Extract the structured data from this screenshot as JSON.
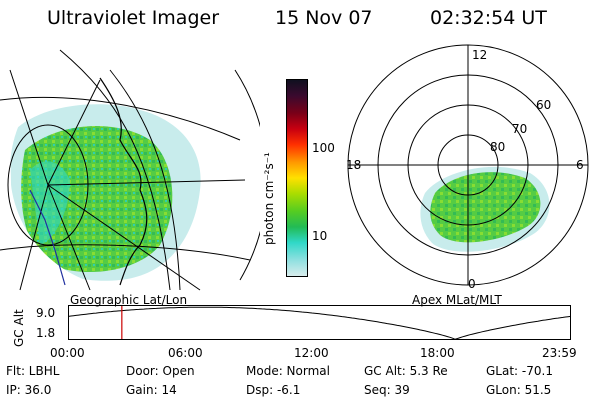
{
  "header": {
    "instrument": "Ultraviolet Imager",
    "date": "15 Nov 07",
    "time": "02:32:54 UT"
  },
  "colorbar": {
    "unit_label": "photon cm⁻²s⁻¹",
    "ticks": [
      "100",
      "10"
    ],
    "colors": [
      "#101020",
      "#3a0a2e",
      "#7a0018",
      "#c80010",
      "#ff3000",
      "#ff9900",
      "#ffe000",
      "#aadd00",
      "#55cc22",
      "#22bb55",
      "#30d8c8",
      "#90e0e0",
      "#d8ecec"
    ]
  },
  "left_panel": {
    "caption": "Geographic Lat/Lon"
  },
  "right_panel": {
    "caption": "Apex MLat/MLT",
    "mlt_labels": [
      "12",
      "18",
      "6",
      "0"
    ],
    "lat_labels": [
      "60",
      "70",
      "80"
    ]
  },
  "altitude_plot": {
    "ylabel": "GC Alt",
    "y_ticks": [
      "9.0",
      "1.8"
    ],
    "x_ticks": [
      "00:00",
      "06:00",
      "12:00",
      "18:00",
      "23:59"
    ],
    "ylim": [
      1.8,
      9.0
    ],
    "current_time_hours": 2.55,
    "marker_color": "#cc0000"
  },
  "info": {
    "flt": "Flt: LBHL",
    "ip": "IP: 36.0",
    "door": "Door: Open",
    "gain": "Gain: 14",
    "mode": "Mode: Normal",
    "dsp": "Dsp:    -6.1",
    "gc_alt": "GC Alt: 5.3 Re",
    "seq": "Seq: 39",
    "glat": "GLat: -70.1",
    "glon": "GLon:  51.5"
  }
}
